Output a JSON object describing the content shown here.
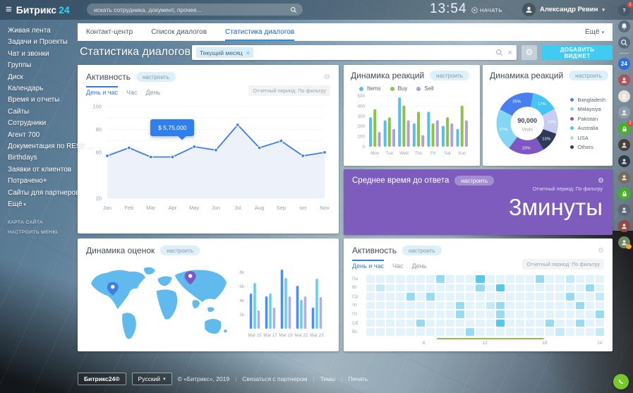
{
  "colors": {
    "accent_cyan": "#3fcbf2",
    "accent_blue": "#2f6fd0",
    "line_blue": "#3e7df0",
    "tooltip_blue": "#2f80ed",
    "purple_widget": "#7d5cbd",
    "green": "#8bc34a",
    "red_badge": "#f44336",
    "orange_badge": "#f5a623"
  },
  "topbar": {
    "logo_text": "Битрикс",
    "logo_24": "24",
    "search_placeholder": "искать сотрудника, документ, прочее...",
    "time": "13:54",
    "start_label": "НАЧАТЬ",
    "user_name": "Александр Ревин"
  },
  "sidebar": {
    "items": [
      "Живая лента",
      "Задачи и Проекты",
      "Чат и звонки",
      "Группы",
      "Диск",
      "Календарь",
      "Время и отчеты",
      "Сайты",
      "Сотрудники",
      "Агент 700",
      "Документация по REST …",
      "Birthdays",
      "Заявки от клиентов",
      "Потрачено+",
      "Сайты для партнеров",
      "Ещё"
    ],
    "footer_links": [
      "КАРТА САЙТА",
      "НАСТРОИТЬ МЕНЮ"
    ]
  },
  "tabs": {
    "items": [
      "Контакт-центр",
      "Список диалогов",
      "Статистика диалогов"
    ],
    "active_index": 2,
    "more_label": "Ещё"
  },
  "header": {
    "title": "Статистика диалогов",
    "filter_chip": "Текущий месяц",
    "add_widget_label": "ДОБАВИТЬ ВИДЖЕТ"
  },
  "common": {
    "configure_label": "настроить",
    "period_label": "Отчетный период: По фильтру"
  },
  "widgets": {
    "activity_line": {
      "title": "Активность",
      "tabs": [
        "День и час",
        "Час",
        "День"
      ],
      "active_tab": 0
    },
    "reactions_bar": {
      "title": "Динамика реакций"
    },
    "reactions_donut": {
      "title": "Динамика реакций"
    },
    "avg_time": {
      "title": "Среднее время до ответа",
      "value": "3минуты"
    },
    "ratings": {
      "title": "Динамика оценок"
    },
    "activity_heatmap": {
      "title": "Активность",
      "tabs": [
        "День и час",
        "Час",
        "День"
      ],
      "active_tab": 0
    }
  },
  "chart_data": [
    {
      "id": "activity-line",
      "type": "line",
      "title": "Активность",
      "x": [
        "Jan",
        "Feb",
        "Mar",
        "Apr",
        "May",
        "Jun",
        "Jul",
        "Aug",
        "Sep",
        "oct",
        "Nov"
      ],
      "values": [
        57,
        64,
        56,
        56,
        65,
        62,
        84,
        64,
        70,
        57,
        60
      ],
      "ylim": [
        20,
        100
      ],
      "ytick_labels": [
        "100",
        "80",
        "60",
        "20"
      ],
      "grid": true,
      "color": "#3e7df0",
      "area_fill": "#edf2fa",
      "tooltip": {
        "index": 4,
        "text": "$ 5,75,000"
      }
    },
    {
      "id": "reactions-bar",
      "type": "bar",
      "title": "Динамика реакций",
      "categories": [
        "Mon",
        "Tue",
        "Wed",
        "Thu",
        "Fri",
        "Sat",
        "Sun"
      ],
      "series": [
        {
          "name": "Items",
          "color": "#56c0ea",
          "values": [
            290,
            260,
            485,
            230,
            345,
            205,
            175
          ]
        },
        {
          "name": "Buy",
          "color": "#8bc34a",
          "values": [
            370,
            290,
            405,
            345,
            230,
            290,
            405
          ]
        },
        {
          "name": "Sell",
          "color": "#b39ddb",
          "values": [
            145,
            175,
            260,
            115,
            260,
            230,
            260
          ]
        }
      ],
      "ylim": [
        0,
        500
      ],
      "yticks": [
        0,
        100,
        200,
        300,
        400,
        500
      ],
      "legend_position": "top"
    },
    {
      "id": "reactions-donut",
      "type": "pie",
      "title": "Динамика реакций",
      "center_value": "90,000",
      "center_label": "Visits",
      "slices": [
        {
          "label": "Bangladesh",
          "pct": 25,
          "color": "#4a7ff0"
        },
        {
          "label": "Australia",
          "pct": 17,
          "color": "#45c4f5"
        },
        {
          "label": "USA",
          "pct": 16,
          "color": "#c7cdf2"
        },
        {
          "label": "Others",
          "pct": 13,
          "color": "#2e3a59"
        },
        {
          "label": "Pakistan",
          "pct": 23,
          "color": "#7e57c2"
        },
        {
          "label": "Malaysiya",
          "pct": 27,
          "color": "#85d6f5"
        }
      ],
      "legend": [
        {
          "label": "Bangladesh",
          "color": "#4a7ff0"
        },
        {
          "label": "Malaysiya",
          "color": "#85d6f5"
        },
        {
          "label": "Pakistan",
          "color": "#7e57c2"
        },
        {
          "label": "Australia",
          "color": "#45c4f5"
        },
        {
          "label": "USA",
          "color": "#c7cdf2"
        },
        {
          "label": "Others",
          "color": "#2e3a59"
        }
      ]
    },
    {
      "id": "avg-time",
      "type": "kpi",
      "title": "Среднее время до ответа",
      "value": "3минуты"
    },
    {
      "id": "ratings-bars",
      "type": "bar",
      "title": "Динамика оценок",
      "categories": [
        "Mar 15",
        "Mar 17",
        "Mar 19",
        "Mar 21",
        "Mar 23"
      ],
      "series": [
        {
          "name": "series-1",
          "color": "#4f8df2",
          "values": [
            5000,
            4600,
            8400,
            6100,
            3000
          ]
        },
        {
          "name": "series-2",
          "color": "#63cdf5",
          "values": [
            6500,
            5000,
            7200,
            4100,
            7100
          ]
        },
        {
          "name": "series-3",
          "color": "#abaff0",
          "values": [
            2600,
            3000,
            4600,
            4600,
            4500
          ]
        }
      ],
      "ylim": [
        0,
        9000
      ],
      "yticks": [
        2000,
        4000,
        6000,
        8000
      ],
      "ytick_labels": [
        "2k",
        "4k",
        "6k",
        "8k"
      ],
      "map_pins": [
        {
          "location": "north-america",
          "color": "#3f7de0"
        },
        {
          "location": "russia",
          "color": "#7e57c2"
        }
      ]
    },
    {
      "id": "activity-heatmap",
      "type": "heatmap",
      "title": "Активность",
      "rows": [
        "Пн",
        "Вт",
        "Ср",
        "Чт",
        "Пт",
        "Сб",
        "Вс"
      ],
      "cols": 24,
      "xticks": [
        6,
        12,
        18,
        24
      ],
      "highlight_span": [
        8,
        18
      ],
      "palette": [
        "#e2f3fb",
        "#c4e9f7",
        "#96dbf3",
        "#58c7ed"
      ],
      "values": [
        [
          0,
          0,
          0,
          0,
          0,
          0,
          0,
          2,
          0,
          0,
          0,
          3,
          0,
          0,
          0,
          0,
          0,
          2,
          0,
          0,
          1,
          0,
          0,
          0
        ],
        [
          0,
          1,
          0,
          0,
          0,
          0,
          0,
          0,
          0,
          0,
          0,
          2,
          0,
          3,
          0,
          0,
          0,
          0,
          0,
          0,
          0,
          0,
          2,
          0
        ],
        [
          0,
          0,
          0,
          0,
          2,
          0,
          2,
          0,
          0,
          0,
          0,
          0,
          0,
          0,
          0,
          0,
          0,
          0,
          0,
          0,
          2,
          0,
          0,
          1
        ],
        [
          0,
          0,
          0,
          0,
          0,
          0,
          0,
          0,
          0,
          2,
          0,
          0,
          1,
          2,
          0,
          0,
          0,
          0,
          0,
          0,
          0,
          2,
          0,
          0
        ],
        [
          0,
          0,
          0,
          0,
          0,
          0,
          0,
          0,
          0,
          2,
          0,
          0,
          0,
          2,
          0,
          0,
          0,
          0,
          0,
          0,
          0,
          0,
          0,
          2
        ],
        [
          0,
          0,
          0,
          0,
          0,
          2,
          0,
          0,
          0,
          0,
          0,
          0,
          0,
          3,
          0,
          0,
          0,
          0,
          2,
          0,
          0,
          2,
          0,
          0
        ],
        [
          0,
          0,
          0,
          0,
          0,
          0,
          0,
          0,
          0,
          0,
          2,
          0,
          0,
          0,
          0,
          0,
          0,
          0,
          0,
          1,
          0,
          0,
          0,
          1
        ]
      ]
    }
  ],
  "rail": {
    "items": [
      {
        "kind": "help",
        "badge": "1"
      },
      {
        "kind": "bell"
      },
      {
        "kind": "search"
      },
      {
        "kind": "sep"
      },
      {
        "kind": "b24",
        "label": "24"
      },
      {
        "kind": "avatar",
        "color": "#a8565c"
      },
      {
        "kind": "avatar",
        "color": "#e7e2d8"
      },
      {
        "kind": "avatar",
        "color": "#8fa0ac"
      },
      {
        "kind": "lock",
        "badge": "2"
      },
      {
        "kind": "avatar",
        "color": "#46403a"
      },
      {
        "kind": "avatar",
        "color": "#2f3d49"
      },
      {
        "kind": "avatar",
        "color": "#7c6a5b"
      },
      {
        "kind": "lock"
      },
      {
        "kind": "avatar",
        "color": "#5b6772"
      },
      {
        "kind": "avatar",
        "color": "#8e4a44"
      },
      {
        "kind": "avatar",
        "color": "#6e8a64",
        "dot": "#f5a623"
      }
    ]
  },
  "footer": {
    "brand": "Битрикс24®",
    "lang": "Русский",
    "copyright": "© «Битрикс», 2019",
    "links": [
      "Связаться с партнером",
      "Темы",
      "Печать"
    ]
  }
}
